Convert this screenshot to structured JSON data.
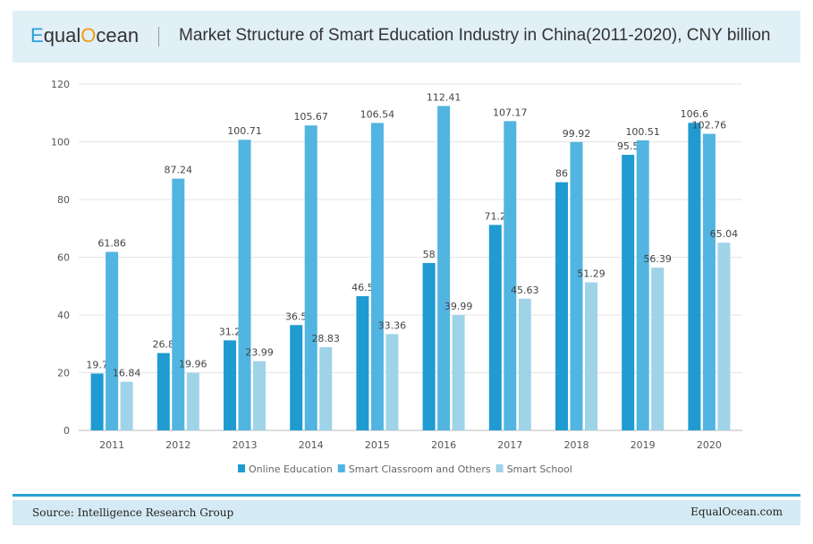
{
  "header": {
    "logo": "EqualOcean",
    "title": "Market Structure of Smart Education Industry in China(2011-2020), CNY billion"
  },
  "chart_data": {
    "type": "bar",
    "title": "Market Structure of Smart Education Industry in China(2011-2020), CNY billion",
    "categories": [
      "2011",
      "2012",
      "2013",
      "2014",
      "2015",
      "2016",
      "2017",
      "2018",
      "2019",
      "2020"
    ],
    "series": [
      {
        "name": "Online Education",
        "color": "#1f9bd1",
        "values": [
          19.7,
          26.8,
          31.2,
          36.5,
          46.5,
          58,
          71.2,
          86,
          95.5,
          106.6
        ]
      },
      {
        "name": "Smart Classroom and Others",
        "color": "#52b4e0",
        "values": [
          61.86,
          87.24,
          100.71,
          105.67,
          106.54,
          112.41,
          107.17,
          99.92,
          100.51,
          102.76
        ]
      },
      {
        "name": "Smart School",
        "color": "#9fd3e8",
        "values": [
          16.84,
          19.96,
          23.99,
          28.83,
          33.36,
          39.99,
          45.63,
          51.29,
          56.39,
          65.04
        ]
      }
    ],
    "ylim": [
      0,
      120
    ],
    "yticks": [
      0,
      20,
      40,
      60,
      80,
      100,
      120
    ],
    "grid": true,
    "legend": "bottom",
    "xlabel": "",
    "ylabel": ""
  },
  "footer": {
    "source": "Source:  Intelligence Research Group",
    "site": "EqualOcean.com"
  }
}
